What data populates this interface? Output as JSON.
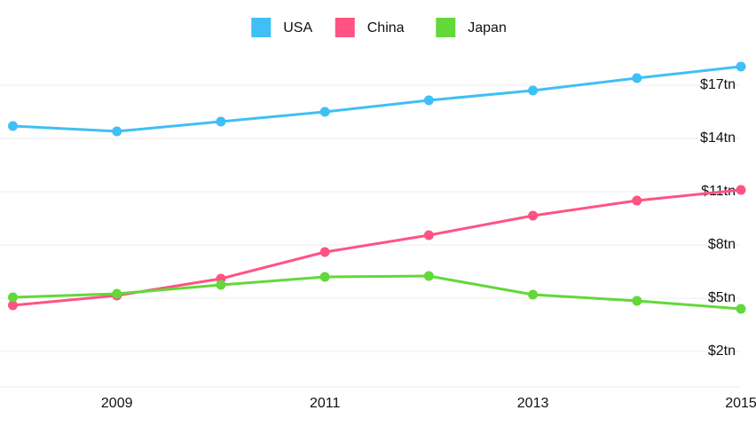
{
  "chart_data": {
    "type": "line",
    "x": [
      2008,
      2009,
      2010,
      2011,
      2012,
      2013,
      2014,
      2015
    ],
    "series": [
      {
        "name": "USA",
        "color": "#3fbff5",
        "values": [
          14.7,
          14.4,
          14.95,
          15.5,
          16.15,
          16.7,
          17.4,
          18.05
        ]
      },
      {
        "name": "China",
        "color": "#ff5384",
        "values": [
          4.6,
          5.15,
          6.1,
          7.6,
          8.55,
          9.65,
          10.5,
          11.1
        ]
      },
      {
        "name": "Japan",
        "color": "#63d83a",
        "values": [
          5.05,
          5.25,
          5.75,
          6.2,
          6.25,
          5.2,
          4.85,
          4.4
        ]
      }
    ],
    "xlim": [
      2008,
      2015
    ],
    "xticks": [
      2009,
      2011,
      2013,
      2015
    ],
    "ylim": [
      0,
      18.2
    ],
    "yticks": [
      {
        "value": 2,
        "label": "$2tn"
      },
      {
        "value": 5,
        "label": "$5tn"
      },
      {
        "value": 8,
        "label": "$8tn"
      },
      {
        "value": 11,
        "label": "$11tn"
      },
      {
        "value": 14,
        "label": "$14tn"
      },
      {
        "value": 17,
        "label": "$17tn"
      }
    ],
    "grid": true,
    "legend": "top"
  }
}
